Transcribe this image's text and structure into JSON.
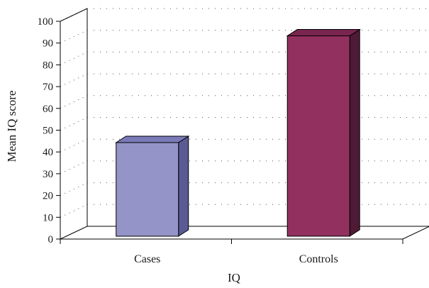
{
  "chart_data": {
    "type": "bar",
    "style": "3d",
    "title": "",
    "xlabel": "IQ",
    "ylabel": "Mean IQ score",
    "categories": [
      "Cases",
      "Controls"
    ],
    "values": [
      43,
      92
    ],
    "ylim": [
      0,
      100
    ],
    "yticks": [
      0,
      10,
      20,
      30,
      40,
      50,
      60,
      70,
      80,
      90,
      100
    ],
    "grid": true,
    "grid_style": "dotted",
    "legend": "none",
    "colors": {
      "Cases": {
        "front": "#9494c8",
        "side": "#5a5a94",
        "top": "#7a7ab8"
      },
      "Controls": {
        "front": "#923060",
        "side": "#4e1a36",
        "top": "#7a2550"
      },
      "axis": "#000000",
      "grid": "#555555"
    }
  }
}
